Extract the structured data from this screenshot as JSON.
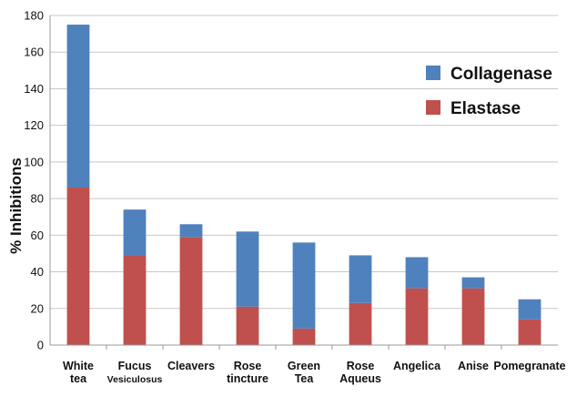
{
  "chart_data": {
    "type": "bar",
    "stacked": true,
    "title": "",
    "xlabel": "",
    "ylabel": "% Inhibitions",
    "ylim": [
      0,
      180
    ],
    "yticks": [
      0,
      20,
      40,
      60,
      80,
      100,
      120,
      140,
      160,
      180
    ],
    "grid": true,
    "legend_position": "top-right",
    "categories": [
      [
        "White",
        "tea"
      ],
      [
        "Fucus",
        "Vesiculosus"
      ],
      [
        "Cleavers",
        ""
      ],
      [
        "Rose",
        "tincture"
      ],
      [
        "Green",
        "Tea"
      ],
      [
        "Rose",
        "Aqueus"
      ],
      [
        "Angelica",
        ""
      ],
      [
        "Anise",
        ""
      ],
      [
        "Pomegranate",
        ""
      ]
    ],
    "series": [
      {
        "name": "Elastase",
        "color": "#c0504d",
        "values": [
          86,
          49,
          59,
          21,
          9,
          23,
          31,
          31,
          14
        ]
      },
      {
        "name": "Collagenase",
        "color": "#4f81bd",
        "values": [
          89,
          25,
          7,
          41,
          47,
          26,
          17,
          6,
          11
        ]
      }
    ],
    "legend_order": [
      "Collagenase",
      "Elastase"
    ]
  }
}
